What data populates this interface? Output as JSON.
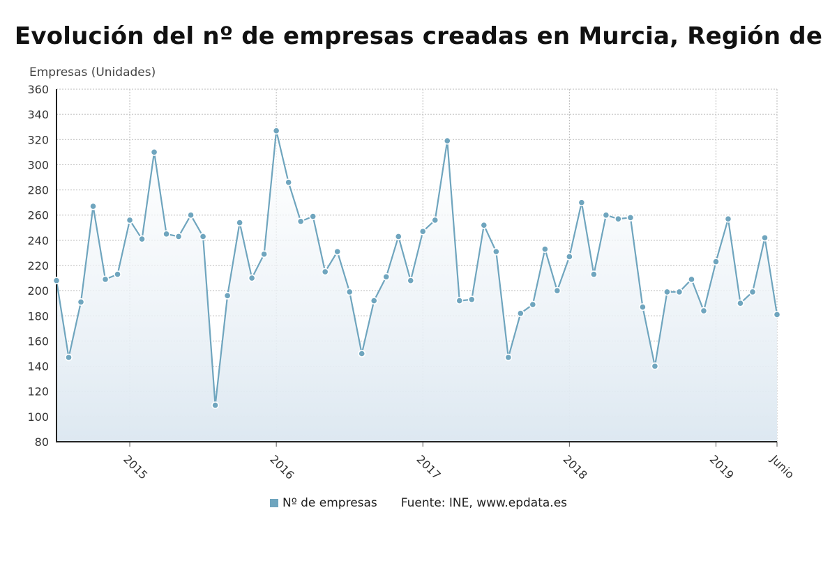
{
  "chart_data": {
    "type": "area",
    "title": "Evolución del nº de empresas creadas en Murcia, Región de",
    "ylabel": "Empresas (Unidades)",
    "ylim": [
      80,
      360
    ],
    "yticks": [
      80,
      100,
      120,
      140,
      160,
      180,
      200,
      220,
      240,
      260,
      280,
      300,
      320,
      340,
      360
    ],
    "grid": true,
    "x_start": "2014-07",
    "x_end": "2019-06",
    "x_tick_labels": [
      {
        "date": "2015-01",
        "label": "2015"
      },
      {
        "date": "2016-01",
        "label": "2016"
      },
      {
        "date": "2017-01",
        "label": "2017"
      },
      {
        "date": "2018-01",
        "label": "2018"
      },
      {
        "date": "2019-01",
        "label": "2019"
      },
      {
        "date": "2019-06",
        "label": "Junio"
      }
    ],
    "series": [
      {
        "name": "Nº de empresas",
        "color": "#6fa5be",
        "x": [
          "2014-07",
          "2014-08",
          "2014-09",
          "2014-10",
          "2014-11",
          "2014-12",
          "2015-01",
          "2015-02",
          "2015-03",
          "2015-04",
          "2015-05",
          "2015-06",
          "2015-07",
          "2015-08",
          "2015-09",
          "2015-10",
          "2015-11",
          "2015-12",
          "2016-01",
          "2016-02",
          "2016-03",
          "2016-04",
          "2016-05",
          "2016-06",
          "2016-07",
          "2016-08",
          "2016-09",
          "2016-10",
          "2016-11",
          "2016-12",
          "2017-01",
          "2017-02",
          "2017-03",
          "2017-04",
          "2017-05",
          "2017-06",
          "2017-07",
          "2017-08",
          "2017-09",
          "2017-10",
          "2017-11",
          "2017-12",
          "2018-01",
          "2018-02",
          "2018-03",
          "2018-04",
          "2018-05",
          "2018-06",
          "2018-07",
          "2018-08",
          "2018-09",
          "2018-10",
          "2018-11",
          "2018-12",
          "2019-01",
          "2019-02",
          "2019-03",
          "2019-04",
          "2019-05",
          "2019-06"
        ],
        "values": [
          208,
          147,
          191,
          267,
          209,
          213,
          256,
          241,
          310,
          245,
          243,
          260,
          243,
          109,
          196,
          254,
          210,
          229,
          327,
          286,
          255,
          259,
          215,
          231,
          199,
          150,
          192,
          211,
          243,
          208,
          247,
          256,
          319,
          192,
          193,
          252,
          231,
          147,
          182,
          189,
          233,
          200,
          227,
          270,
          213,
          260,
          257,
          258,
          187,
          140,
          199,
          199,
          209,
          184,
          223,
          257,
          190,
          199,
          242,
          181
        ]
      }
    ]
  },
  "legend": {
    "series_label": "Nº de empresas",
    "source": "Fuente: INE, www.epdata.es"
  }
}
